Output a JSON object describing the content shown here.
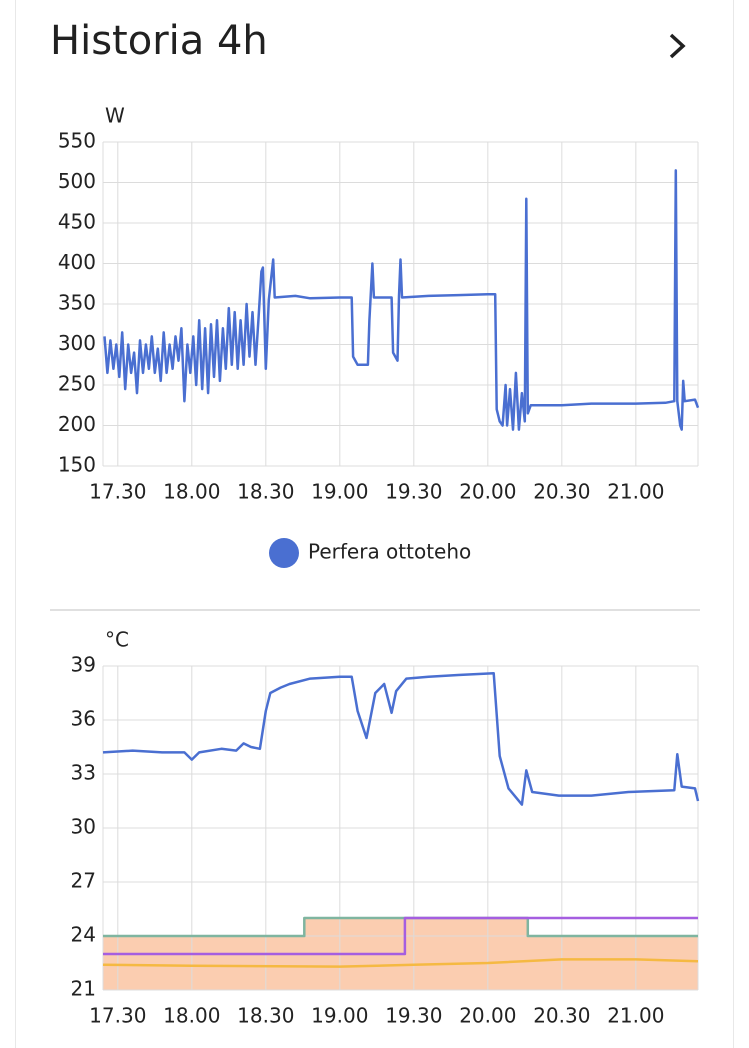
{
  "header": {
    "title": "Historia 4h"
  },
  "chart_data": [
    {
      "type": "line",
      "y_label": "W",
      "legend": "bottom",
      "grid": true,
      "xlim": [
        17.4,
        21.42
      ],
      "xticks": [
        {
          "value": 17.5,
          "label": "17.30"
        },
        {
          "value": 18,
          "label": "18.00"
        },
        {
          "value": 18.5,
          "label": "18.30"
        },
        {
          "value": 19,
          "label": "19.00"
        },
        {
          "value": 19.5,
          "label": "19.30"
        },
        {
          "value": 20,
          "label": "20.00"
        },
        {
          "value": 20.5,
          "label": "20.30"
        },
        {
          "value": 21,
          "label": "21.00"
        }
      ],
      "ylim": [
        150,
        550
      ],
      "yticks": [
        150,
        200,
        250,
        300,
        350,
        400,
        450,
        500,
        550
      ],
      "series": [
        {
          "name": "Perfera ottoteho",
          "color": "#4a6fd1",
          "x": [
            17.41,
            17.43,
            17.45,
            17.47,
            17.49,
            17.51,
            17.53,
            17.55,
            17.57,
            17.59,
            17.61,
            17.63,
            17.65,
            17.67,
            17.69,
            17.71,
            17.73,
            17.75,
            17.77,
            17.79,
            17.81,
            17.83,
            17.85,
            17.87,
            17.89,
            17.91,
            17.93,
            17.95,
            17.97,
            17.99,
            18.01,
            18.03,
            18.05,
            18.07,
            18.09,
            18.11,
            18.13,
            18.15,
            18.17,
            18.19,
            18.21,
            18.23,
            18.25,
            18.27,
            18.29,
            18.31,
            18.33,
            18.35,
            18.37,
            18.39,
            18.41,
            18.43,
            18.45,
            18.47,
            18.48,
            18.5,
            18.52,
            18.55,
            18.56,
            18.7,
            18.8,
            19.0,
            19.08,
            19.09,
            19.12,
            19.19,
            19.2,
            19.22,
            19.23,
            19.35,
            19.36,
            19.39,
            19.4,
            19.41,
            19.42,
            19.6,
            19.8,
            20.0,
            20.05,
            20.06,
            20.08,
            20.1,
            20.12,
            20.13,
            20.15,
            20.17,
            20.19,
            20.21,
            20.23,
            20.25,
            20.26,
            20.27,
            20.29,
            20.5,
            20.7,
            21.0,
            21.2,
            21.26,
            21.27,
            21.28,
            21.3,
            21.31,
            21.32,
            21.33,
            21.4,
            21.42
          ],
          "values": [
            310,
            265,
            305,
            270,
            300,
            260,
            315,
            245,
            300,
            265,
            290,
            240,
            305,
            265,
            300,
            270,
            310,
            265,
            295,
            255,
            315,
            265,
            300,
            270,
            310,
            280,
            320,
            230,
            300,
            265,
            310,
            250,
            330,
            245,
            320,
            240,
            325,
            260,
            330,
            255,
            320,
            270,
            345,
            275,
            340,
            270,
            330,
            275,
            350,
            285,
            340,
            275,
            330,
            390,
            395,
            270,
            355,
            405,
            358,
            360,
            357,
            358,
            358,
            285,
            275,
            275,
            330,
            400,
            358,
            358,
            290,
            280,
            360,
            405,
            358,
            360,
            361,
            362,
            362,
            220,
            205,
            200,
            250,
            200,
            245,
            195,
            265,
            195,
            240,
            205,
            480,
            215,
            225,
            225,
            227,
            227,
            228,
            230,
            515,
            230,
            200,
            195,
            255,
            230,
            232,
            222
          ]
        }
      ]
    },
    {
      "type": "line",
      "y_label": "°C",
      "grid": true,
      "xlim": [
        17.4,
        21.42
      ],
      "xticks": [
        {
          "value": 17.5,
          "label": "17.30"
        },
        {
          "value": 18,
          "label": "18.00"
        },
        {
          "value": 18.5,
          "label": "18.30"
        },
        {
          "value": 19,
          "label": "19.00"
        },
        {
          "value": 19.5,
          "label": "19.30"
        },
        {
          "value": 20,
          "label": "20.00"
        },
        {
          "value": 20.5,
          "label": "20.30"
        },
        {
          "value": 21,
          "label": "21.00"
        }
      ],
      "ylim": [
        21,
        39
      ],
      "yticks": [
        21,
        24,
        27,
        30,
        33,
        36,
        39
      ],
      "series": [
        {
          "color": "#7fb5a0",
          "fill": "#fbcdb0",
          "x": [
            17.4,
            18.76,
            18.76,
            20.27,
            20.27,
            21.42
          ],
          "values": [
            24,
            24,
            25,
            25,
            24,
            24
          ]
        },
        {
          "color": "#f5b942",
          "x": [
            17.4,
            18.0,
            19.0,
            19.5,
            20.0,
            20.5,
            21.0,
            21.42
          ],
          "values": [
            22.4,
            22.35,
            22.3,
            22.4,
            22.5,
            22.7,
            22.7,
            22.6
          ]
        },
        {
          "color": "#a55ee0",
          "x": [
            17.4,
            19.44,
            19.44,
            21.42
          ],
          "values": [
            23,
            23,
            25,
            25
          ]
        },
        {
          "color": "#4a6fd1",
          "x": [
            17.4,
            17.6,
            17.8,
            17.95,
            18.0,
            18.05,
            18.2,
            18.3,
            18.35,
            18.4,
            18.46,
            18.5,
            18.53,
            18.6,
            18.66,
            18.8,
            19.0,
            19.08,
            19.12,
            19.18,
            19.24,
            19.3,
            19.35,
            19.38,
            19.45,
            19.6,
            19.8,
            20.04,
            20.08,
            20.14,
            20.23,
            20.26,
            20.3,
            20.48,
            20.7,
            20.95,
            21.26,
            21.28,
            21.31,
            21.4,
            21.42
          ],
          "values": [
            34.2,
            34.3,
            34.2,
            34.2,
            33.8,
            34.2,
            34.4,
            34.3,
            34.7,
            34.5,
            34.4,
            36.5,
            37.5,
            37.8,
            38.0,
            38.3,
            38.4,
            38.4,
            36.5,
            35.0,
            37.5,
            38.0,
            36.4,
            37.6,
            38.3,
            38.4,
            38.5,
            38.6,
            34.0,
            32.2,
            31.3,
            33.2,
            32.0,
            31.8,
            31.8,
            32.0,
            32.1,
            34.1,
            32.3,
            32.2,
            31.5
          ]
        }
      ]
    }
  ]
}
